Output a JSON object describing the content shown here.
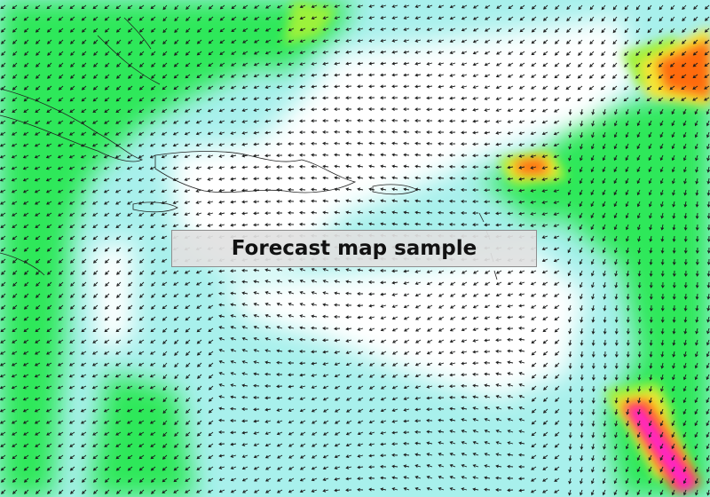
{
  "caption": {
    "text": "Forecast map sample"
  },
  "legend_colors": {
    "calm": "#ffffff",
    "light": "#a8f0ec",
    "moderate": "#2ee85a",
    "fresh": "#9cf23a",
    "strong": "#f5e534",
    "gale": "#ff6a10",
    "storm": "#ff1fd2"
  },
  "map_layers": [
    "wind-speed-shading",
    "wind-direction-arrows",
    "coastlines"
  ]
}
